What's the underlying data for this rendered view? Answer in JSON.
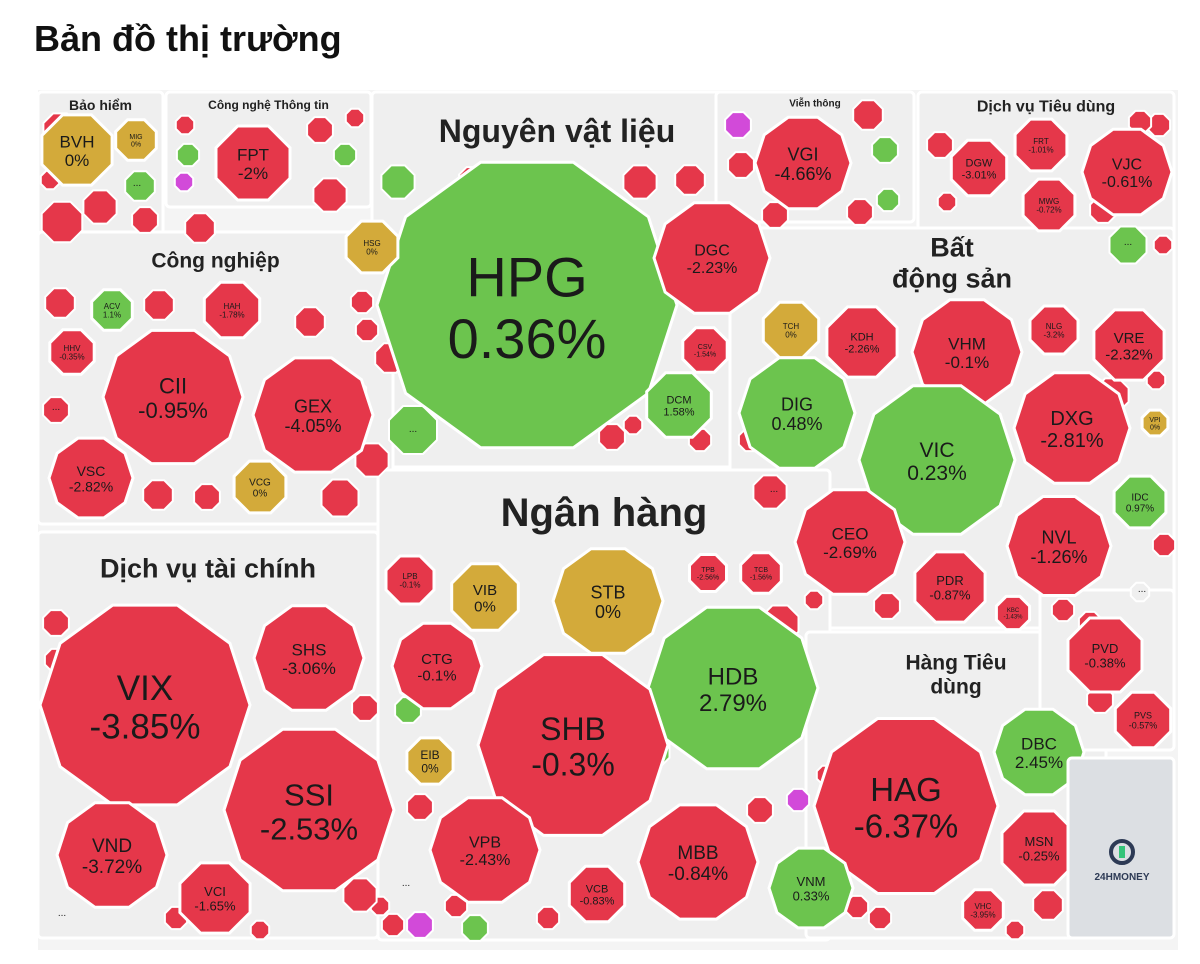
{
  "page": {
    "title": "Bản đồ thị trường"
  },
  "colors": {
    "down": "#e5374a",
    "up": "#6cc44e",
    "flat": "#d3aa3a",
    "ceiling": "#d24ad9",
    "sector_bg": "#efefef",
    "border": "#ffffff"
  },
  "brand": {
    "name": "24HMONEY",
    "icon": "money-refresh-icon"
  },
  "chart_data": {
    "type": "treemap",
    "title": "Bản đồ thị trường",
    "unit": "%",
    "sectors": [
      {
        "name": "Bảo hiểm",
        "stocks": [
          {
            "ticker": "BVH",
            "change": 0
          },
          {
            "ticker": "MIG",
            "change": 0
          }
        ]
      },
      {
        "name": "Công nghệ Thông tin",
        "stocks": [
          {
            "ticker": "FPT",
            "change": -2
          }
        ]
      },
      {
        "name": "Nguyên vật liệu",
        "stocks": [
          {
            "ticker": "HPG",
            "change": 0.36
          },
          {
            "ticker": "DGC",
            "change": -2.23
          },
          {
            "ticker": "HSG",
            "change": 0
          },
          {
            "ticker": "CSV",
            "change": -1.54
          },
          {
            "ticker": "DCM",
            "change": 1.58
          }
        ]
      },
      {
        "name": "Viễn thông",
        "stocks": [
          {
            "ticker": "VGI",
            "change": -4.66
          }
        ]
      },
      {
        "name": "Dịch vụ Tiêu dùng",
        "stocks": [
          {
            "ticker": "DGW",
            "change": -3.01
          },
          {
            "ticker": "FRT",
            "change": -1.01
          },
          {
            "ticker": "VJC",
            "change": -0.61
          },
          {
            "ticker": "MWG",
            "change": -0.72
          }
        ]
      },
      {
        "name": "Công nghiệp",
        "stocks": [
          {
            "ticker": "ACV",
            "change": 1.1
          },
          {
            "ticker": "HAH",
            "change": -1.78
          },
          {
            "ticker": "HHV",
            "change": -0.35
          },
          {
            "ticker": "CII",
            "change": -0.95
          },
          {
            "ticker": "GEX",
            "change": -4.05
          },
          {
            "ticker": "VSC",
            "change": -2.82
          },
          {
            "ticker": "VCG",
            "change": 0
          }
        ]
      },
      {
        "name": "Bất động sản",
        "stocks": [
          {
            "ticker": "TCH",
            "change": 0
          },
          {
            "ticker": "KDH",
            "change": -2.26
          },
          {
            "ticker": "VHM",
            "change": -0.1
          },
          {
            "ticker": "NLG",
            "change": -3.2
          },
          {
            "ticker": "VRE",
            "change": -2.32
          },
          {
            "ticker": "DIG",
            "change": 0.48
          },
          {
            "ticker": "VIC",
            "change": 0.23
          },
          {
            "ticker": "DXG",
            "change": -2.81
          },
          {
            "ticker": "VPI",
            "change": 0
          },
          {
            "ticker": "IDC",
            "change": 0.97
          },
          {
            "ticker": "CEO",
            "change": -2.69
          },
          {
            "ticker": "NVL",
            "change": -1.26
          },
          {
            "ticker": "PDR",
            "change": -0.87
          },
          {
            "ticker": "KBC",
            "change": -1.43
          }
        ]
      },
      {
        "name": "Ngân hàng",
        "stocks": [
          {
            "ticker": "LPB",
            "change": -0.1
          },
          {
            "ticker": "VIB",
            "change": 0
          },
          {
            "ticker": "STB",
            "change": 0
          },
          {
            "ticker": "TPB",
            "change": -2.56
          },
          {
            "ticker": "TCB",
            "change": -1.56
          },
          {
            "ticker": "CTG",
            "change": -0.1
          },
          {
            "ticker": "HDB",
            "change": 2.79
          },
          {
            "ticker": "SHB",
            "change": -0.3
          },
          {
            "ticker": "EIB",
            "change": 0
          },
          {
            "ticker": "VPB",
            "change": -2.43
          },
          {
            "ticker": "MBB",
            "change": -0.84
          },
          {
            "ticker": "VCB",
            "change": -0.83
          }
        ]
      },
      {
        "name": "Dịch vụ tài chính",
        "stocks": [
          {
            "ticker": "VIX",
            "change": -3.85
          },
          {
            "ticker": "SHS",
            "change": -3.06
          },
          {
            "ticker": "SSI",
            "change": -2.53
          },
          {
            "ticker": "VND",
            "change": -3.72
          },
          {
            "ticker": "VCI",
            "change": -1.65
          }
        ]
      },
      {
        "name": "Hàng Tiêu dùng",
        "stocks": [
          {
            "ticker": "HAG",
            "change": -6.37
          },
          {
            "ticker": "DBC",
            "change": 2.45
          },
          {
            "ticker": "MSN",
            "change": -0.25
          },
          {
            "ticker": "VNM",
            "change": 0.33
          },
          {
            "ticker": "VHC",
            "change": -3.95
          }
        ]
      },
      {
        "name": "",
        "stocks": [
          {
            "ticker": "PVD",
            "change": -0.38
          },
          {
            "ticker": "PVS",
            "change": -0.57
          }
        ]
      }
    ]
  }
}
